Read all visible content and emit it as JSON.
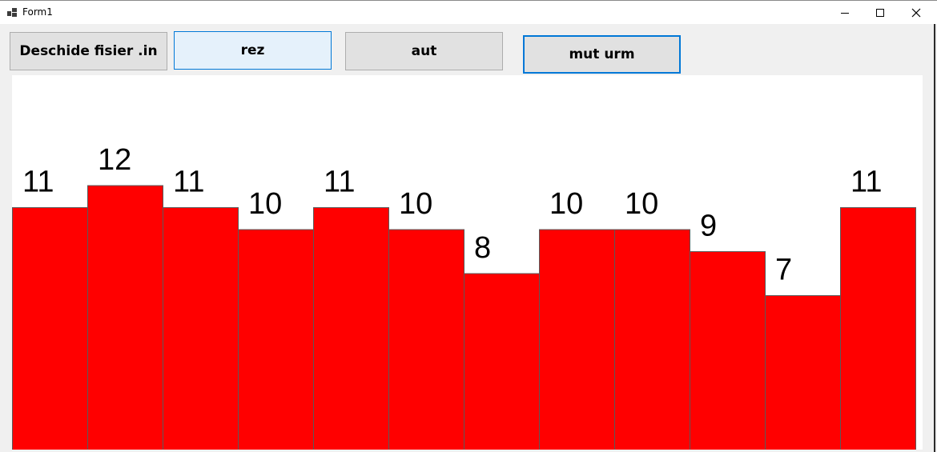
{
  "window": {
    "title": "Form1",
    "icons": {
      "app": "form-app-icon",
      "minimize": "minimize-icon",
      "maximize": "maximize-icon",
      "close": "close-icon"
    }
  },
  "toolbar": {
    "open_label": "Deschide fisier .in",
    "rez_label": "rez",
    "aut_label": "aut",
    "mut_urm_label": "mut urm"
  },
  "colors": {
    "bar_fill": "#ff0000",
    "bar_stroke": "#5a5a5a",
    "button_hover": "#e5f1fb",
    "focus_border": "#0078d7"
  },
  "chart_data": {
    "type": "bar",
    "values": [
      11,
      12,
      11,
      10,
      11,
      10,
      8,
      10,
      10,
      9,
      7,
      11
    ],
    "data_labels": [
      "11",
      "12",
      "11",
      "10",
      "11",
      "10",
      "8",
      "10",
      "10",
      "9",
      "7",
      "11"
    ],
    "title": "",
    "xlabel": "",
    "ylabel": "",
    "axes_visible": false,
    "grid": false
  }
}
